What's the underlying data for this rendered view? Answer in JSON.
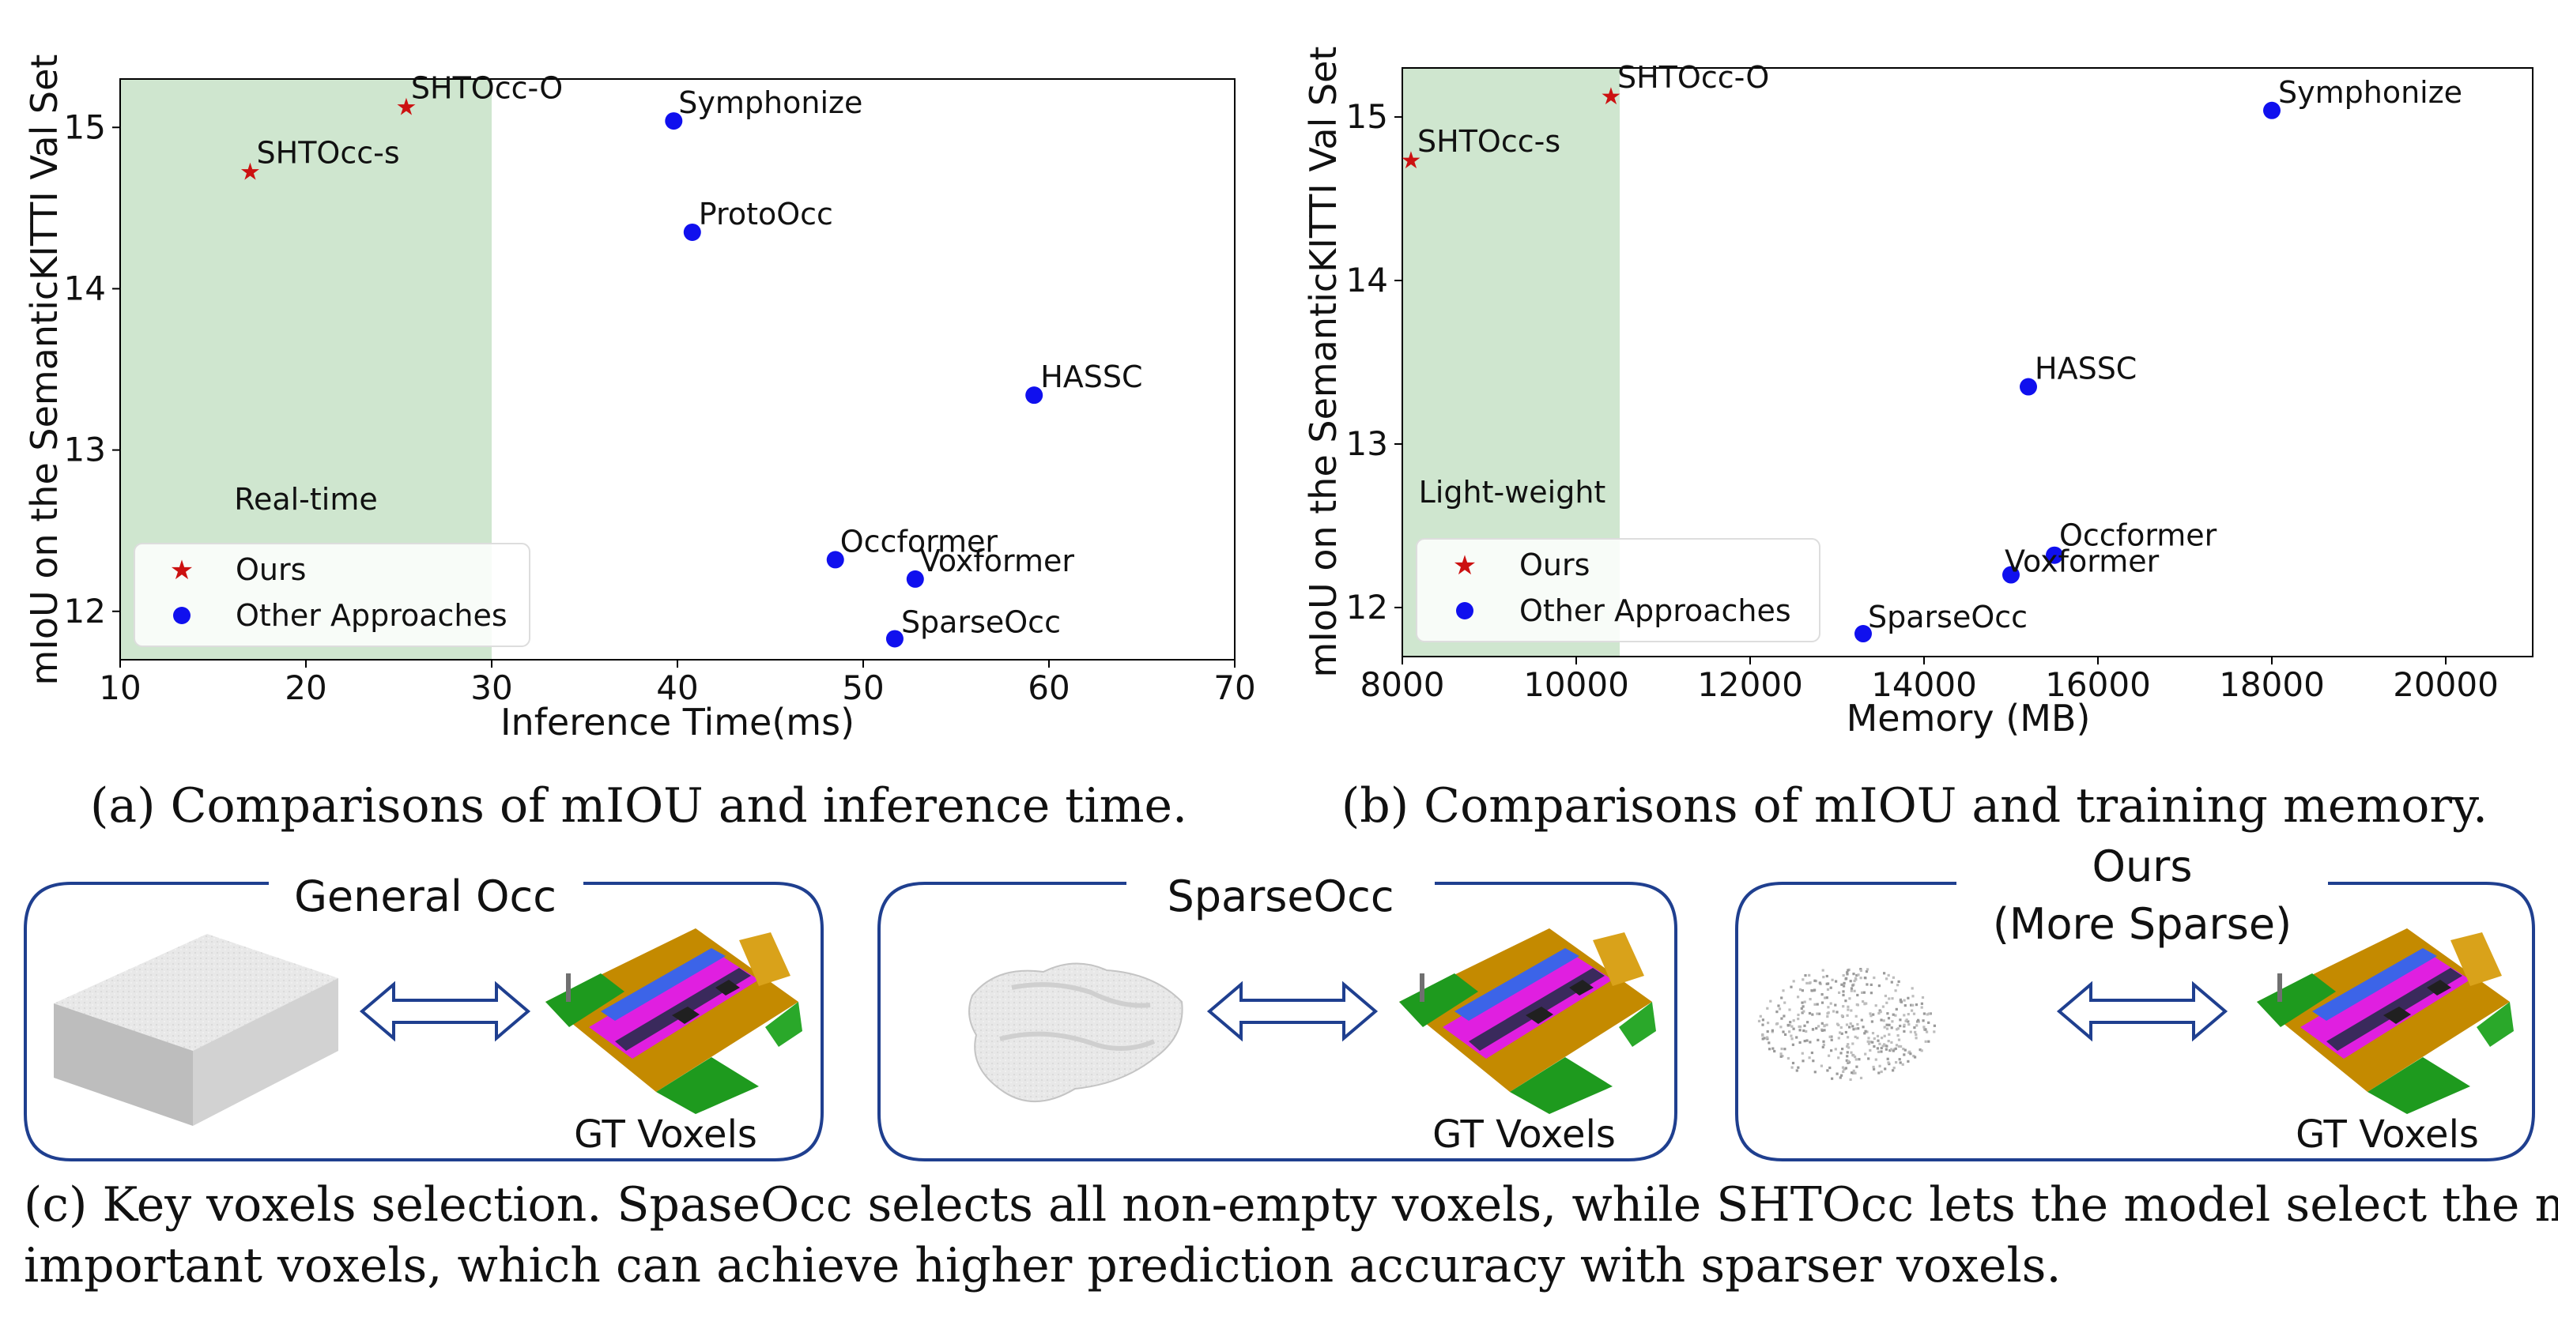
{
  "chart_data": [
    {
      "type": "scatter",
      "title": "",
      "xlabel": "Inference Time(ms)",
      "ylabel": "mIoU on the SemanticKITTI Val Set",
      "xlim": [
        10,
        70
      ],
      "ylim": [
        11.7,
        15.3
      ],
      "xticks": [
        "10",
        "20",
        "30",
        "40",
        "50",
        "60",
        "70"
      ],
      "xtick_values": [
        10,
        20,
        30,
        40,
        50,
        60,
        70
      ],
      "yticks": [
        "12",
        "13",
        "14",
        "15"
      ],
      "ytick_values": [
        12,
        13,
        14,
        15
      ],
      "region": {
        "x_from": 10,
        "x_to": 30,
        "label": "Real-time",
        "label_x": 20,
        "label_y": 12.68
      },
      "legend": {
        "placement": "lower-left",
        "entries": [
          "Ours",
          "Other Approaches"
        ]
      },
      "series": [
        {
          "name": "Ours",
          "marker": "star",
          "color": "#cc1111",
          "points": [
            {
              "label": "SHTOcc-O",
              "x": 25.4,
              "y": 15.13
            },
            {
              "label": "SHTOcc-s",
              "x": 17.0,
              "y": 14.73
            }
          ]
        },
        {
          "name": "Other Approaches",
          "marker": "circle",
          "color": "#1010ee",
          "points": [
            {
              "label": "Symphonize",
              "x": 39.8,
              "y": 15.04
            },
            {
              "label": "ProtoOcc",
              "x": 40.8,
              "y": 14.35
            },
            {
              "label": "HASSC",
              "x": 59.2,
              "y": 13.34
            },
            {
              "label": "Occformer",
              "x": 48.5,
              "y": 12.32
            },
            {
              "label": "Voxformer",
              "x": 52.8,
              "y": 12.2
            },
            {
              "label": "SparseOcc",
              "x": 51.7,
              "y": 11.83
            }
          ]
        }
      ],
      "caption": "(a) Comparisons of mIOU and inference time."
    },
    {
      "type": "scatter",
      "title": "",
      "xlabel": "Memory (MB)",
      "ylabel": "mIoU on the SemanticKITTI Val Set",
      "xlim": [
        8000,
        21000
      ],
      "ylim": [
        11.7,
        15.3
      ],
      "xticks": [
        "8000",
        "10000",
        "12000",
        "14000",
        "16000",
        "18000",
        "20000"
      ],
      "xtick_values": [
        8000,
        10000,
        12000,
        14000,
        16000,
        18000,
        20000
      ],
      "yticks": [
        "12",
        "13",
        "14",
        "15"
      ],
      "ytick_values": [
        12,
        13,
        14,
        15
      ],
      "region": {
        "x_from": 8000,
        "x_to": 10500,
        "label": "Light-weight",
        "label_x": 9250,
        "label_y": 12.68
      },
      "legend": {
        "placement": "lower-left",
        "entries": [
          "Ours",
          "Other Approaches"
        ]
      },
      "series": [
        {
          "name": "Ours",
          "marker": "star",
          "color": "#cc1111",
          "points": [
            {
              "label": "SHTOcc-O",
              "x": 10400,
              "y": 15.13
            },
            {
              "label": "SHTOcc-s",
              "x": 8100,
              "y": 14.74
            }
          ]
        },
        {
          "name": "Other Approaches",
          "marker": "circle",
          "color": "#1010ee",
          "points": [
            {
              "label": "Symphonize",
              "x": 18000,
              "y": 15.04
            },
            {
              "label": "HASSC",
              "x": 15200,
              "y": 13.35
            },
            {
              "label": "Occformer",
              "x": 15500,
              "y": 12.32
            },
            {
              "label": "Voxformer",
              "x": 15000,
              "y": 12.2
            },
            {
              "label": "SparseOcc",
              "x": 13300,
              "y": 11.84
            }
          ]
        }
      ],
      "caption": "(b) Comparisons of mIOU and training memory."
    }
  ],
  "panels": [
    {
      "title": "General Occ",
      "gt": "GT Voxels"
    },
    {
      "title": "SparseOcc",
      "gt": "GT Voxels"
    },
    {
      "title_line1": "Ours",
      "title_line2": "(More Sparse)",
      "gt": "GT Voxels"
    }
  ],
  "figure_caption": {
    "line1": "(c) Key voxels selection. SpaseOcc selects all non-empty voxels, while SHTOcc lets the model select the most",
    "line2": "important voxels, which can achieve higher prediction accuracy with sparser voxels."
  },
  "colors": {
    "region": "#cfe6cf",
    "frame": "#1f3f8f",
    "ours": "#cc1111",
    "others": "#1010ee"
  }
}
